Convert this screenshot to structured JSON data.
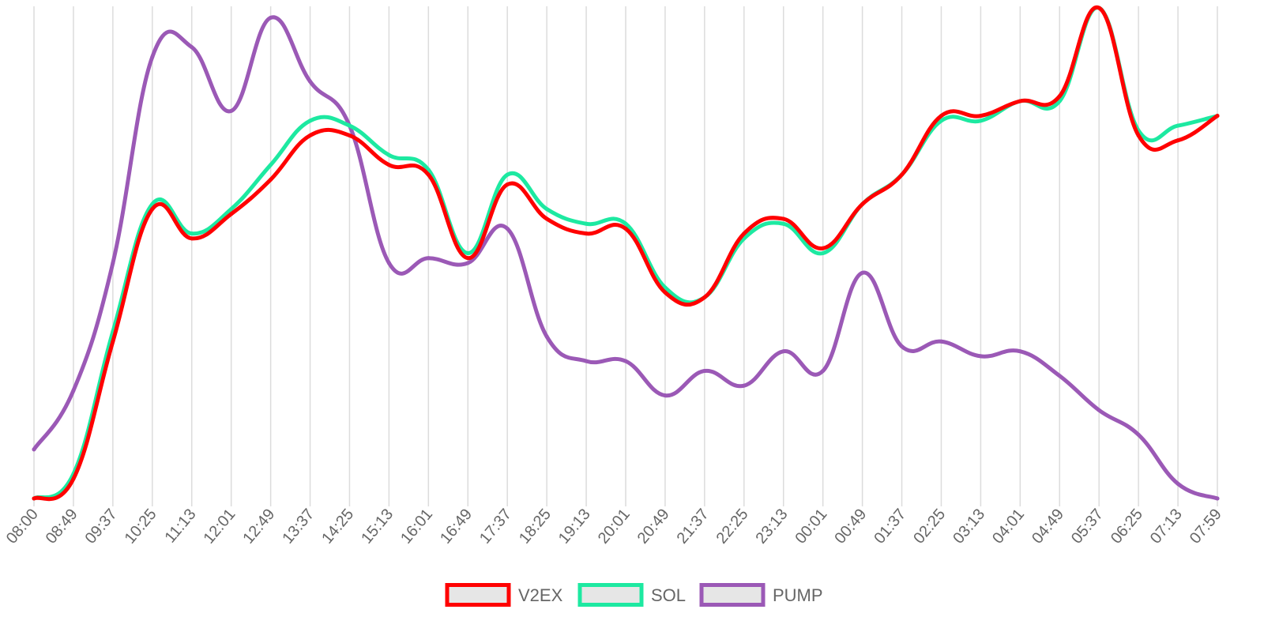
{
  "chart_data": {
    "type": "line",
    "categories": [
      "08:00",
      "08:49",
      "09:37",
      "10:25",
      "11:13",
      "12:01",
      "12:49",
      "13:37",
      "14:25",
      "15:13",
      "16:01",
      "16:49",
      "17:37",
      "18:25",
      "19:13",
      "20:01",
      "20:49",
      "21:37",
      "22:25",
      "23:13",
      "00:01",
      "00:49",
      "01:37",
      "02:25",
      "03:13",
      "04:01",
      "04:49",
      "05:37",
      "06:25",
      "07:13",
      "07:59"
    ],
    "ylim": [
      0,
      100
    ],
    "grid": true,
    "legend_position": "bottom",
    "series": [
      {
        "name": "V2EX",
        "color": "#ff0000",
        "values": [
          0,
          4,
          32,
          59,
          53,
          58,
          65,
          74,
          74,
          68,
          66,
          49,
          64,
          57,
          54,
          55,
          42,
          41,
          54,
          57,
          51,
          60,
          66,
          78,
          78,
          81,
          82,
          100,
          74,
          73,
          78
        ]
      },
      {
        "name": "SOL",
        "color": "#1de9a1",
        "values": [
          0,
          5,
          34,
          60,
          54,
          59,
          68,
          77,
          76,
          70,
          67,
          50,
          66,
          59,
          56,
          56,
          43,
          41,
          53,
          56,
          50,
          60,
          66,
          77,
          77,
          81,
          81,
          100,
          75,
          76,
          78
        ]
      },
      {
        "name": "PUMP",
        "color": "#9b59b6",
        "values": [
          10,
          22,
          48,
          90,
          92,
          79,
          98,
          85,
          76,
          48,
          49,
          48,
          55,
          33,
          28,
          28,
          21,
          26,
          23,
          30,
          26,
          46,
          31,
          32,
          29,
          30,
          25,
          18,
          13,
          3,
          0
        ]
      }
    ]
  }
}
